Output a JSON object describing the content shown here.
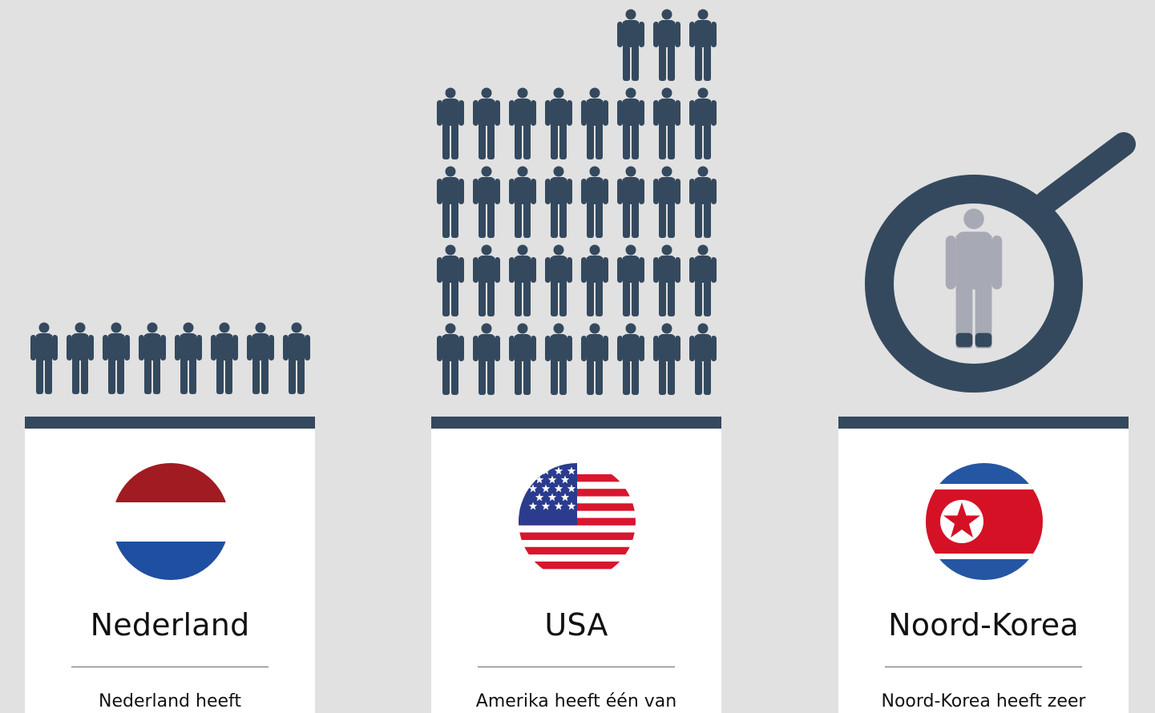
{
  "colors": {
    "background": "#e1e1e1",
    "figure": "#34495e",
    "figure_highlight": "#a7aab5",
    "card": "#ffffff"
  },
  "countries": [
    {
      "name": "Nederland",
      "description": "Nederland heeft",
      "flag": "netherlands-flag-icon",
      "people_count": 8
    },
    {
      "name": "USA",
      "description": "Amerika heeft één van",
      "flag": "usa-flag-icon",
      "people_count": 35
    },
    {
      "name": "Noord-Korea",
      "description": "Noord-Korea heeft zeer",
      "flag": "north-korea-flag-icon",
      "people_count": 1
    }
  ],
  "icons": {
    "person": "person-icon",
    "magnifier": "magnifying-glass-icon"
  }
}
